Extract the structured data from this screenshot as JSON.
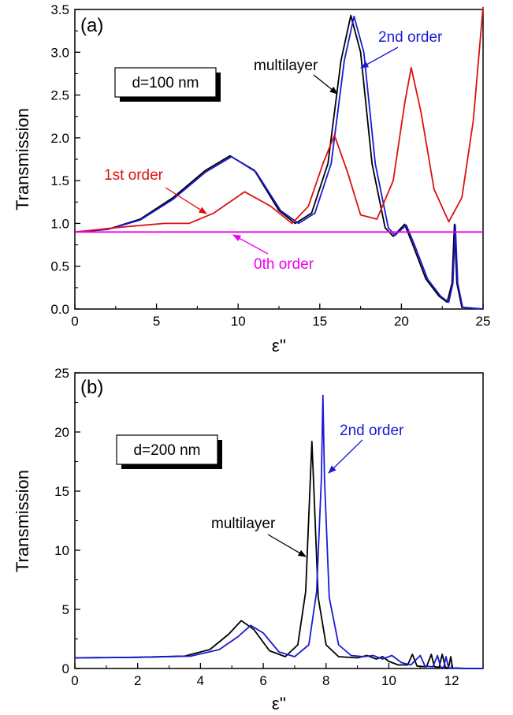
{
  "colors": {
    "multilayer": "#000000",
    "first_order": "#dd1111",
    "second_order": "#1a1ad6",
    "zeroth_order": "#ee00ee"
  },
  "chart_data": [
    {
      "type": "line",
      "panel_label": "(a)",
      "xlabel": "ε''",
      "ylabel": "Transmission",
      "xlim": [
        0,
        25
      ],
      "ylim": [
        0,
        3.5
      ],
      "x_ticks": [
        "0",
        "5",
        "10",
        "15",
        "20",
        "25"
      ],
      "y_ticks": [
        "0.0",
        "0.5",
        "1.0",
        "1.5",
        "2.0",
        "2.5",
        "3.0",
        "3.5"
      ],
      "box_label": "d=100 nm",
      "series": [
        {
          "name": "multilayer",
          "color": "#000000",
          "points": [
            [
              0,
              0.9
            ],
            [
              2,
              0.93
            ],
            [
              4,
              1.05
            ],
            [
              6,
              1.3
            ],
            [
              8,
              1.62
            ],
            [
              9.5,
              1.79
            ],
            [
              11,
              1.62
            ],
            [
              12.5,
              1.15
            ],
            [
              13.5,
              1.0
            ],
            [
              14.5,
              1.12
            ],
            [
              15.5,
              1.7
            ],
            [
              16.3,
              2.9
            ],
            [
              16.9,
              3.43
            ],
            [
              17.5,
              3.0
            ],
            [
              18.2,
              1.7
            ],
            [
              19,
              0.95
            ],
            [
              19.5,
              0.85
            ],
            [
              20.2,
              0.99
            ],
            [
              20.7,
              0.75
            ],
            [
              21.5,
              0.35
            ],
            [
              22.3,
              0.15
            ],
            [
              22.8,
              0.08
            ],
            [
              23.1,
              0.3
            ],
            [
              23.25,
              0.99
            ],
            [
              23.4,
              0.3
            ],
            [
              23.7,
              0.02
            ],
            [
              25,
              0.0
            ]
          ]
        },
        {
          "name": "2nd order",
          "color": "#1a1ad6",
          "points": [
            [
              0,
              0.9
            ],
            [
              2,
              0.93
            ],
            [
              4,
              1.04
            ],
            [
              6,
              1.28
            ],
            [
              8,
              1.6
            ],
            [
              9.6,
              1.78
            ],
            [
              11.1,
              1.6
            ],
            [
              12.6,
              1.15
            ],
            [
              13.7,
              1.0
            ],
            [
              14.7,
              1.12
            ],
            [
              15.7,
              1.7
            ],
            [
              16.5,
              2.9
            ],
            [
              17.1,
              3.42
            ],
            [
              17.7,
              3.0
            ],
            [
              18.4,
              1.7
            ],
            [
              19.2,
              0.95
            ],
            [
              19.6,
              0.86
            ],
            [
              20.3,
              0.98
            ],
            [
              20.8,
              0.75
            ],
            [
              21.6,
              0.35
            ],
            [
              22.4,
              0.15
            ],
            [
              22.9,
              0.08
            ],
            [
              23.15,
              0.3
            ],
            [
              23.3,
              0.98
            ],
            [
              23.45,
              0.3
            ],
            [
              23.75,
              0.02
            ],
            [
              25,
              0.0
            ]
          ]
        },
        {
          "name": "1st order",
          "color": "#dd1111",
          "points": [
            [
              0,
              0.9
            ],
            [
              3,
              0.96
            ],
            [
              5.5,
              1.0
            ],
            [
              7,
              1.0
            ],
            [
              8.5,
              1.12
            ],
            [
              10.4,
              1.37
            ],
            [
              12,
              1.2
            ],
            [
              13.3,
              1.0
            ],
            [
              14.3,
              1.2
            ],
            [
              15.2,
              1.7
            ],
            [
              15.9,
              2.03
            ],
            [
              16.7,
              1.6
            ],
            [
              17.5,
              1.1
            ],
            [
              18.5,
              1.05
            ],
            [
              19.5,
              1.5
            ],
            [
              20.2,
              2.4
            ],
            [
              20.6,
              2.82
            ],
            [
              21.2,
              2.3
            ],
            [
              22,
              1.4
            ],
            [
              22.9,
              1.02
            ],
            [
              23.7,
              1.3
            ],
            [
              24.4,
              2.2
            ],
            [
              25,
              3.53
            ]
          ]
        },
        {
          "name": "0th order",
          "color": "#ee00ee",
          "points": [
            [
              0,
              0.9
            ],
            [
              25,
              0.9
            ]
          ]
        }
      ],
      "annotations": [
        {
          "text": "multilayer",
          "color": "#000000"
        },
        {
          "text": "2nd order",
          "color": "#1a1ad6"
        },
        {
          "text": "1st order",
          "color": "#dd1111"
        },
        {
          "text": "0th order",
          "color": "#ee00ee"
        }
      ]
    },
    {
      "type": "line",
      "panel_label": "(b)",
      "xlabel": "ε''",
      "ylabel": "Transmission",
      "xlim": [
        0,
        13
      ],
      "ylim": [
        0,
        25
      ],
      "x_ticks": [
        "0",
        "2",
        "4",
        "6",
        "8",
        "10",
        "12"
      ],
      "y_ticks": [
        "0",
        "5",
        "10",
        "15",
        "20",
        "25"
      ],
      "box_label": "d=200 nm",
      "series": [
        {
          "name": "multilayer",
          "color": "#000000",
          "points": [
            [
              0,
              0.9
            ],
            [
              2,
              0.95
            ],
            [
              3.5,
              1.05
            ],
            [
              4.3,
              1.6
            ],
            [
              4.9,
              2.9
            ],
            [
              5.3,
              4.05
            ],
            [
              5.7,
              3.3
            ],
            [
              6.2,
              1.5
            ],
            [
              6.7,
              1.0
            ],
            [
              7.1,
              2.0
            ],
            [
              7.35,
              6.5
            ],
            [
              7.5,
              16.0
            ],
            [
              7.55,
              19.2
            ],
            [
              7.6,
              16.0
            ],
            [
              7.75,
              6.0
            ],
            [
              8.0,
              2.0
            ],
            [
              8.4,
              1.0
            ],
            [
              9.0,
              0.9
            ],
            [
              9.3,
              1.1
            ],
            [
              9.6,
              0.8
            ],
            [
              9.8,
              1.0
            ],
            [
              10.0,
              0.6
            ],
            [
              10.3,
              0.3
            ],
            [
              10.6,
              0.3
            ],
            [
              10.75,
              1.2
            ],
            [
              10.9,
              0.2
            ],
            [
              11.2,
              0.15
            ],
            [
              11.35,
              1.2
            ],
            [
              11.45,
              0.15
            ],
            [
              11.6,
              0.1
            ],
            [
              11.7,
              1.2
            ],
            [
              11.8,
              0.1
            ],
            [
              11.9,
              0.05
            ],
            [
              11.97,
              1.0
            ],
            [
              12.03,
              0.05
            ],
            [
              12.5,
              0.0
            ],
            [
              13,
              0.0
            ]
          ]
        },
        {
          "name": "2nd order",
          "color": "#1a1ad6",
          "points": [
            [
              0,
              0.9
            ],
            [
              2,
              0.95
            ],
            [
              3.7,
              1.05
            ],
            [
              4.6,
              1.6
            ],
            [
              5.2,
              2.7
            ],
            [
              5.6,
              3.65
            ],
            [
              6.0,
              3.0
            ],
            [
              6.5,
              1.4
            ],
            [
              7.0,
              1.0
            ],
            [
              7.45,
              2.0
            ],
            [
              7.7,
              6.5
            ],
            [
              7.85,
              16.0
            ],
            [
              7.9,
              23.1
            ],
            [
              7.95,
              16.0
            ],
            [
              8.1,
              6.0
            ],
            [
              8.4,
              2.0
            ],
            [
              8.8,
              1.1
            ],
            [
              9.2,
              1.0
            ],
            [
              9.5,
              1.1
            ],
            [
              9.8,
              0.8
            ],
            [
              10.1,
              1.1
            ],
            [
              10.4,
              0.5
            ],
            [
              10.7,
              0.3
            ],
            [
              11.0,
              1.1
            ],
            [
              11.15,
              0.2
            ],
            [
              11.4,
              0.15
            ],
            [
              11.55,
              1.1
            ],
            [
              11.65,
              0.1
            ],
            [
              11.75,
              0.1
            ],
            [
              11.82,
              1.0
            ],
            [
              11.9,
              0.05
            ],
            [
              12.5,
              0.0
            ],
            [
              13,
              0.0
            ]
          ]
        }
      ],
      "annotations": [
        {
          "text": "multilayer",
          "color": "#000000"
        },
        {
          "text": "2nd order",
          "color": "#1a1ad6"
        }
      ]
    }
  ]
}
